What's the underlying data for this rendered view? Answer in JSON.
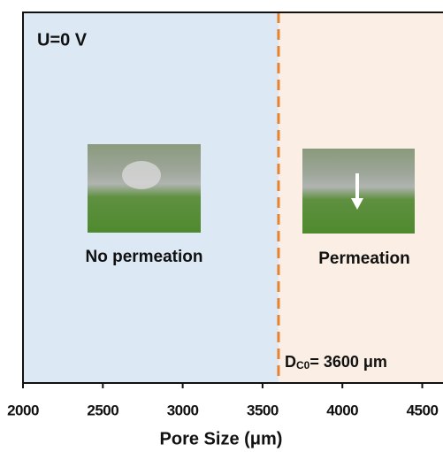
{
  "chart_data": {
    "type": "threshold",
    "state_label": "U=0 V",
    "x_label": "Pore Size (μm)",
    "xlim": [
      2000,
      4630
    ],
    "xticks": [
      2000,
      2500,
      3000,
      3500,
      4000,
      4500
    ],
    "threshold": 3600,
    "threshold_label": {
      "main": "D",
      "sub": "C0",
      "rest": "= 3600 μm"
    },
    "threshold_color": "#e8822f",
    "regions": [
      {
        "label": "No permeation",
        "color": "#dce8f4"
      },
      {
        "label": "Permeation",
        "color": "#fbeee4"
      }
    ]
  }
}
